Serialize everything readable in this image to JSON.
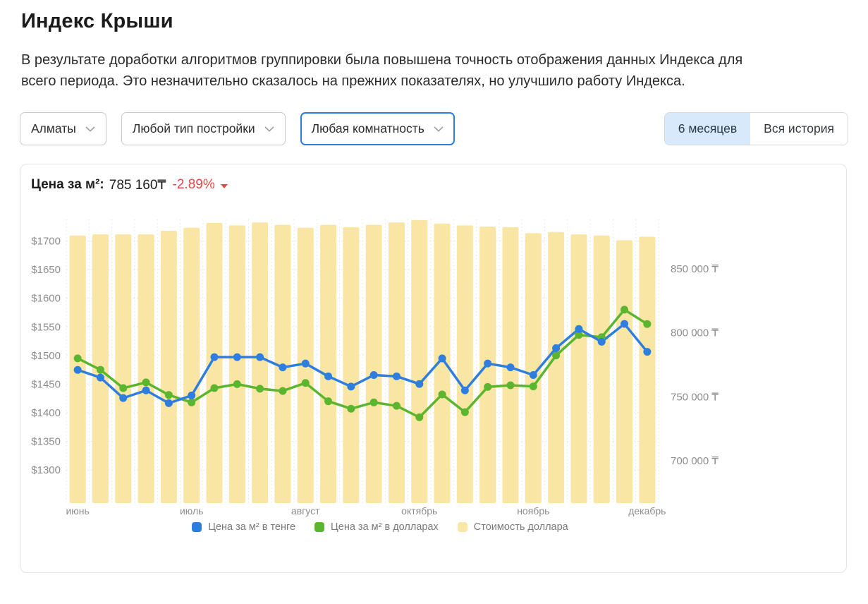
{
  "page": {
    "title": "Индекс Крыши",
    "description": "В результате доработки алгоритмов группировки была повышена точность отображения данных Индекса для всего периода. Это незначительно сказалось на прежних показателях, но улучшило работу Индекса."
  },
  "filters": {
    "city": {
      "value": "Алматы"
    },
    "building_type": {
      "value": "Любой тип постройки"
    },
    "rooms": {
      "value": "Любая комнатность"
    },
    "range_options": [
      {
        "label": "6 месяцев",
        "selected": true
      },
      {
        "label": "Вся история",
        "selected": false
      }
    ]
  },
  "chart_header": {
    "label": "Цена за м²:",
    "value": "785 160₸",
    "change": "-2.89%"
  },
  "colors": {
    "blue": "#2e7edf",
    "green": "#5bb52f",
    "yellow": "#f9e6a4",
    "red": "#e64646",
    "grid": "#e3e3e3",
    "axis_text": "#8d8d8d"
  },
  "chart_data": {
    "type": "combo",
    "x": {
      "points": 26,
      "unit": "week",
      "month_labels": [
        {
          "slot": 0,
          "label": "июнь"
        },
        {
          "slot": 5,
          "label": "июль"
        },
        {
          "slot": 10,
          "label": "август"
        },
        {
          "slot": 15,
          "label": "октябрь"
        },
        {
          "slot": 20,
          "label": "ноябрь"
        },
        {
          "slot": 25,
          "label": "декабрь"
        }
      ]
    },
    "left_axis": {
      "currency": "USD",
      "ticks": [
        1700,
        1650,
        1600,
        1550,
        1500,
        1450,
        1400,
        1350,
        1300
      ],
      "labels": [
        "$1700",
        "$1650",
        "$1600",
        "$1550",
        "$1500",
        "$1450",
        "$1400",
        "$1350",
        "$1300"
      ],
      "range": [
        1300,
        1700
      ],
      "grid": true
    },
    "right_axis": {
      "currency": "KZT",
      "ticks": [
        850000,
        800000,
        750000,
        700000
      ],
      "labels": [
        "850 000 ₸",
        "800 000 ₸",
        "750 000 ₸",
        "700 000 ₸"
      ],
      "range": [
        700000,
        850000
      ],
      "grid": false
    },
    "bar_axis": {
      "visible": false,
      "range": [
        0,
        477
      ],
      "note": "scale not shown in chart; bar values are estimated USD rate in KZT"
    },
    "series": [
      {
        "name": "Цена за м² в тенге",
        "type": "line",
        "axis": "right",
        "color_key": "blue",
        "values": [
          771000,
          765000,
          749000,
          755000,
          745000,
          751000,
          781000,
          781000,
          781000,
          773000,
          776000,
          766000,
          758000,
          767000,
          766000,
          760000,
          780000,
          755000,
          776000,
          773000,
          767000,
          788000,
          803000,
          793000,
          807000,
          785160
        ]
      },
      {
        "name": "Цена за м² в долларах",
        "type": "line",
        "axis": "left",
        "color_key": "green",
        "values": [
          1495,
          1475,
          1443,
          1453,
          1431,
          1418,
          1443,
          1450,
          1442,
          1438,
          1452,
          1420,
          1407,
          1418,
          1412,
          1392,
          1432,
          1401,
          1445,
          1448,
          1446,
          1500,
          1536,
          1532,
          1580,
          1555
        ]
      },
      {
        "name": "Стоимость доллара",
        "type": "bar",
        "axis": "bar",
        "color_key": "yellow",
        "values": [
          450,
          452,
          452,
          452,
          458,
          463,
          471,
          467,
          472,
          468,
          463,
          468,
          464,
          468,
          472,
          476,
          470,
          467,
          465,
          464,
          454,
          456,
          452,
          450,
          442,
          448
        ]
      }
    ],
    "legend_position": "bottom"
  }
}
